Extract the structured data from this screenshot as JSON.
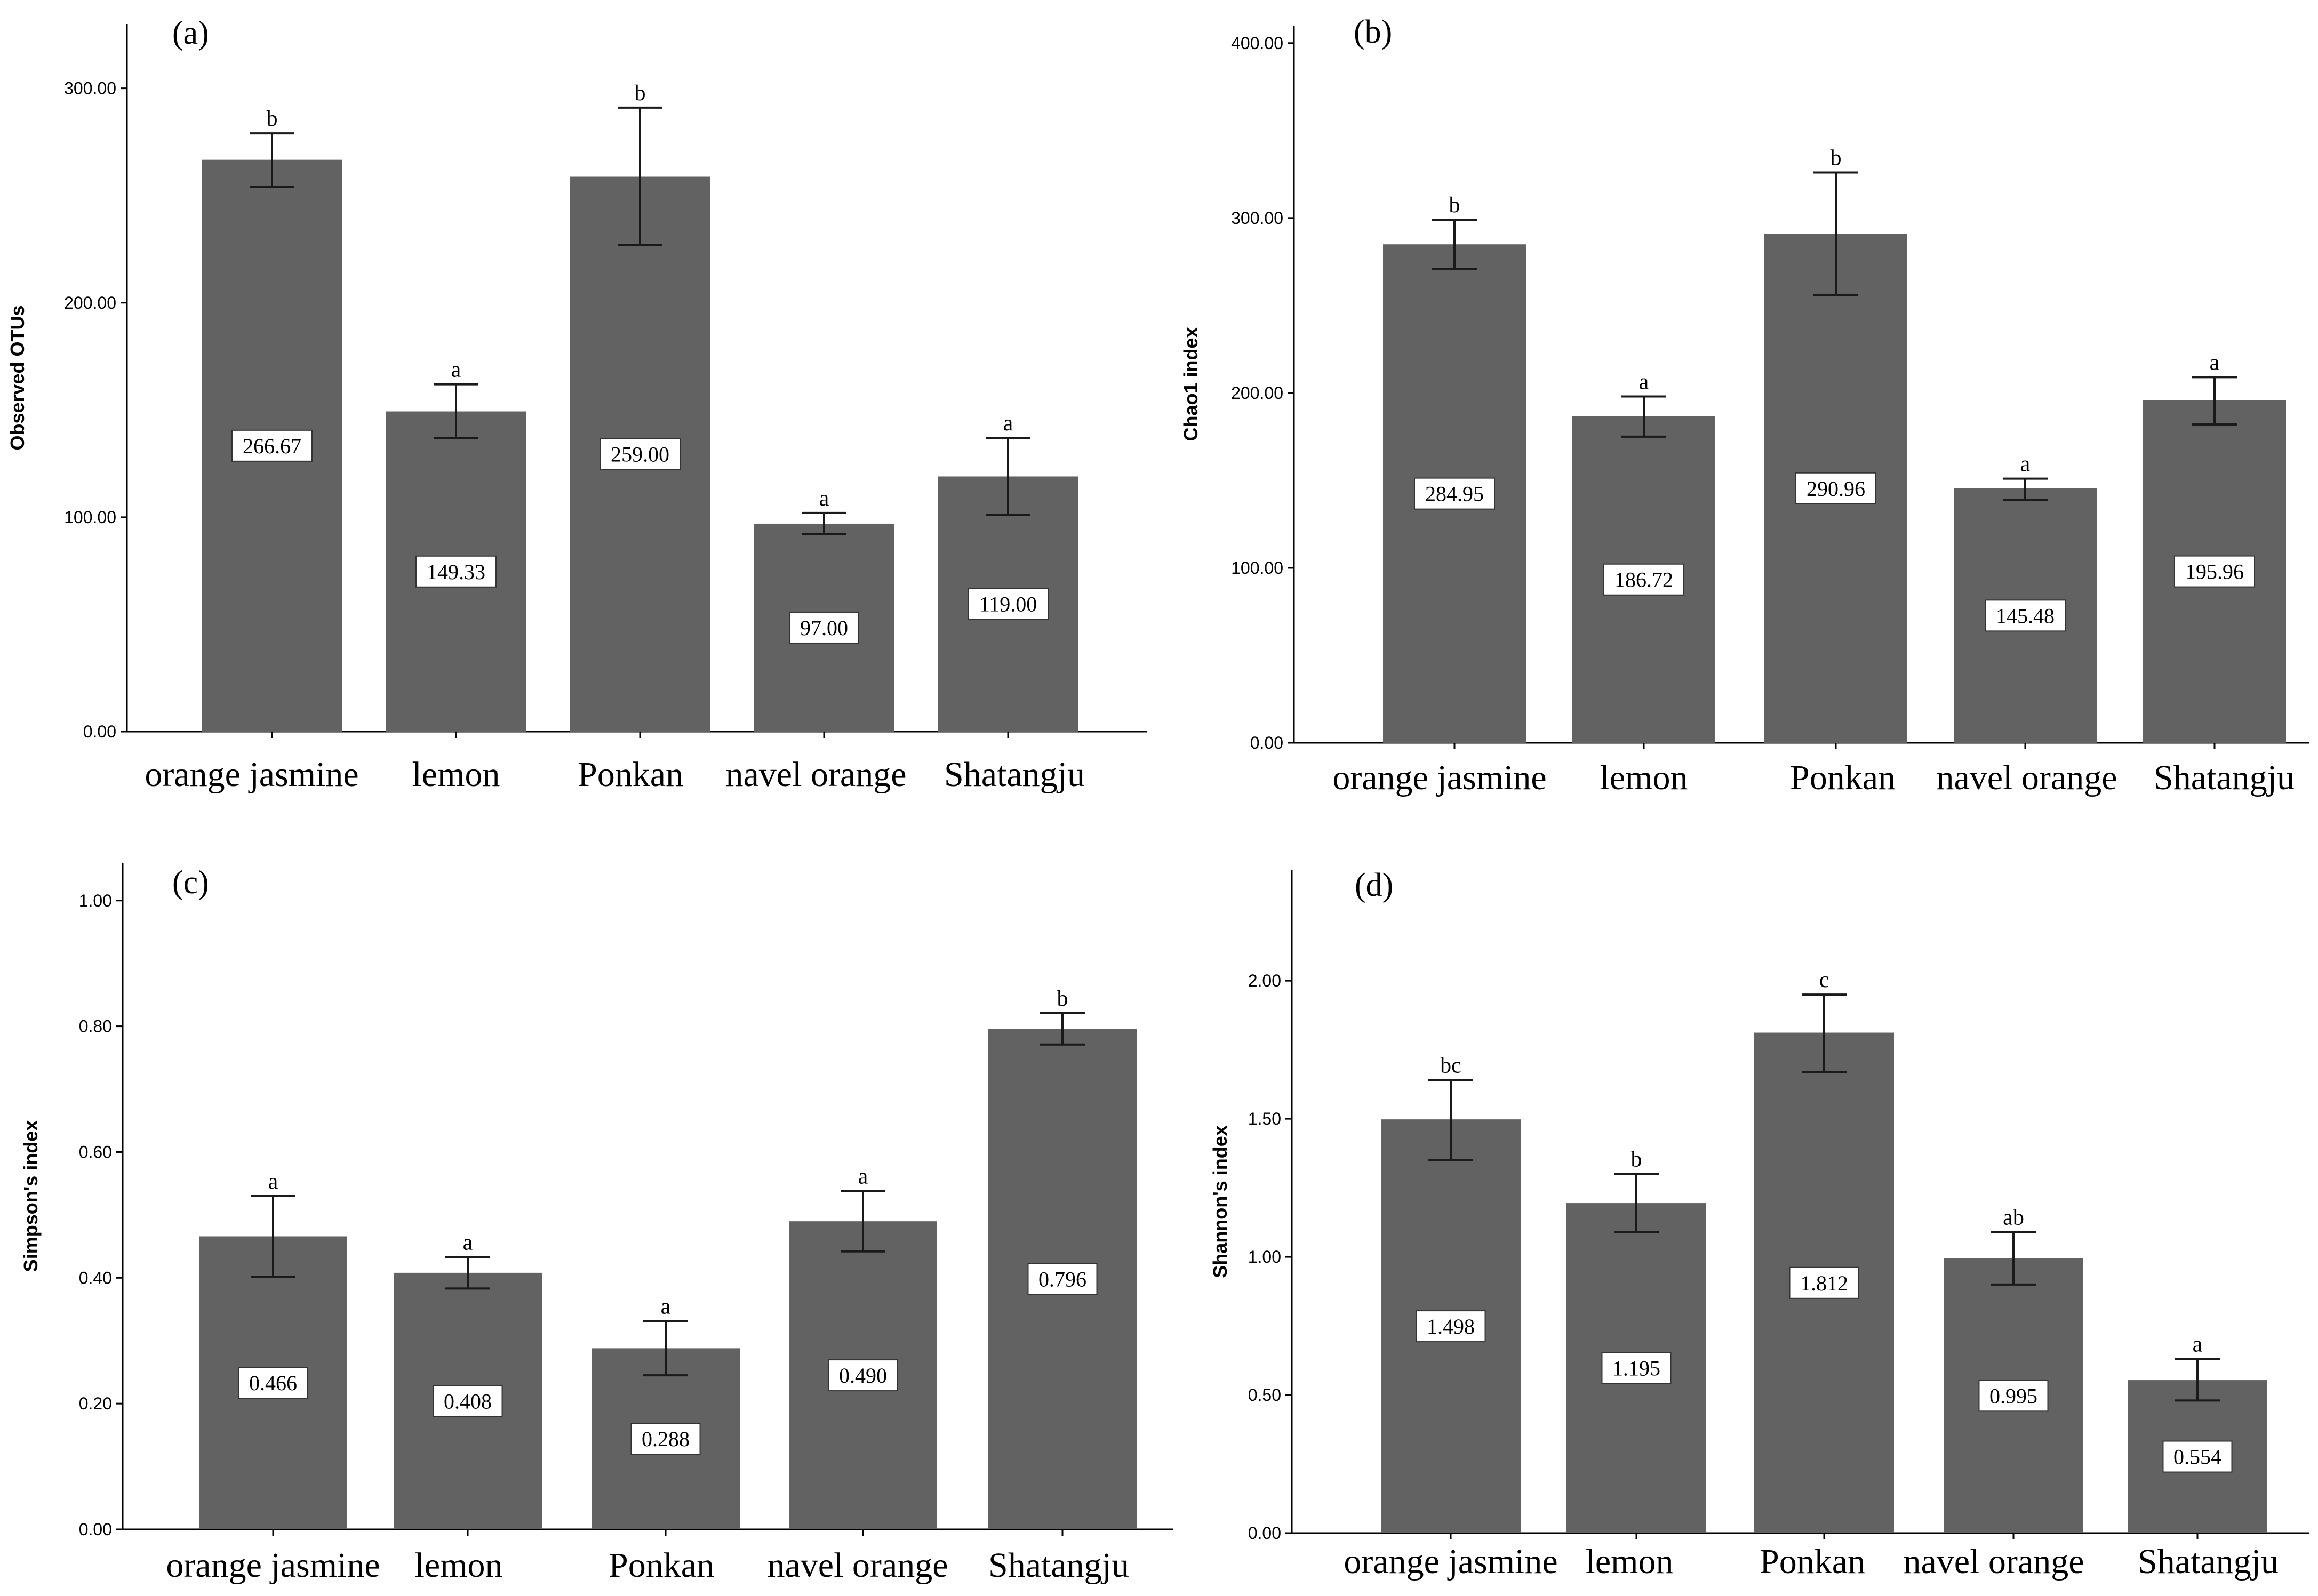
{
  "colors": {
    "bar": "#626262",
    "axis": "#000000",
    "background": "#ffffff"
  },
  "chart_data": [
    {
      "type": "bar",
      "panel": "(a)",
      "ylabel": "Observed OTUs",
      "ylim": [
        0,
        330
      ],
      "yticks": [
        0,
        100,
        200,
        300
      ],
      "ytick_labels": [
        "0.00",
        "100.00",
        "200.00",
        "300.00"
      ],
      "categories": [
        "orange jasmine",
        "lemon",
        "Ponkan",
        "navel orange",
        "Shatangju"
      ],
      "values": [
        266.67,
        149.33,
        259.0,
        97.0,
        119.0
      ],
      "value_labels": [
        "266.67",
        "149.33",
        "259.00",
        "97.00",
        "119.00"
      ],
      "error_low": [
        254,
        137,
        227,
        92,
        101
      ],
      "error_high": [
        279,
        162,
        291,
        102,
        137
      ],
      "significance": [
        "b",
        "a",
        "b",
        "a",
        "a"
      ]
    },
    {
      "type": "bar",
      "panel": "(b)",
      "ylabel": "Chao1 index",
      "ylim": [
        0,
        410
      ],
      "yticks": [
        0,
        100,
        200,
        300,
        400
      ],
      "ytick_labels": [
        "0.00",
        "100.00",
        "200.00",
        "300.00",
        "400.00"
      ],
      "categories": [
        "orange jasmine",
        "lemon",
        "Ponkan",
        "navel orange",
        "Shatangju"
      ],
      "values": [
        284.95,
        186.72,
        290.96,
        145.48,
        195.96
      ],
      "value_labels": [
        "284.95",
        "186.72",
        "290.96",
        "145.48",
        "195.96"
      ],
      "error_low": [
        271,
        175,
        256,
        139,
        182
      ],
      "error_high": [
        299,
        198,
        326,
        151,
        209
      ],
      "significance": [
        "b",
        "a",
        "b",
        "a",
        "a"
      ]
    },
    {
      "type": "bar",
      "panel": "(c)",
      "ylabel": "Simpson's index",
      "ylim": [
        0,
        1.06
      ],
      "yticks": [
        0,
        0.2,
        0.4,
        0.6,
        0.8,
        1.0
      ],
      "ytick_labels": [
        "0.00",
        "0.20",
        "0.40",
        "0.60",
        "0.80",
        "1.00"
      ],
      "categories": [
        "orange jasmine",
        "lemon",
        "Ponkan",
        "navel orange",
        "Shatangju"
      ],
      "values": [
        0.466,
        0.408,
        0.288,
        0.49,
        0.796
      ],
      "value_labels": [
        "0.466",
        "0.408",
        "0.288",
        "0.490",
        "0.796"
      ],
      "error_low": [
        0.402,
        0.383,
        0.245,
        0.442,
        0.771
      ],
      "error_high": [
        0.53,
        0.433,
        0.331,
        0.538,
        0.821
      ],
      "significance": [
        "a",
        "a",
        "a",
        "a",
        "b"
      ]
    },
    {
      "type": "bar",
      "panel": "(d)",
      "ylabel": "Shannon's index",
      "ylim": [
        0,
        2.4
      ],
      "yticks": [
        0,
        0.5,
        1.0,
        1.5,
        2.0
      ],
      "ytick_labels": [
        "0.00",
        "0.50",
        "1.00",
        "1.50",
        "2.00"
      ],
      "categories": [
        "orange jasmine",
        "lemon",
        "Ponkan",
        "navel orange",
        "Shatangju"
      ],
      "values": [
        1.498,
        1.195,
        1.812,
        0.995,
        0.554
      ],
      "value_labels": [
        "1.498",
        "1.195",
        "1.812",
        "0.995",
        "0.554"
      ],
      "error_low": [
        1.35,
        1.09,
        1.67,
        0.9,
        0.48
      ],
      "error_high": [
        1.64,
        1.3,
        1.95,
        1.09,
        0.63
      ],
      "significance": [
        "bc",
        "b",
        "c",
        "ab",
        "a"
      ]
    }
  ]
}
